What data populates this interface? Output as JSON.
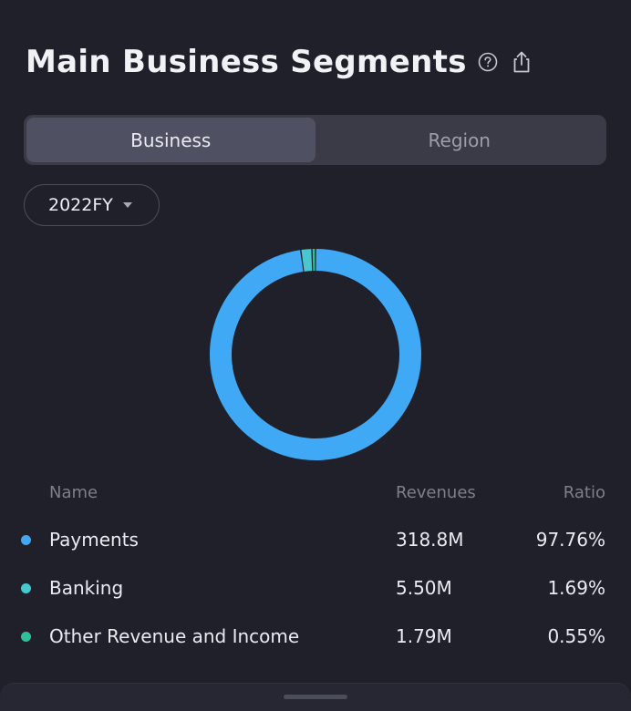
{
  "header": {
    "title": "Main Business Segments",
    "help_icon": "question-circle-icon",
    "share_icon": "share-icon"
  },
  "tabs": [
    {
      "label": "Business",
      "active": true
    },
    {
      "label": "Region",
      "active": false
    }
  ],
  "period_selector": {
    "value": "2022FY",
    "icon": "caret-down-icon"
  },
  "chart_data": {
    "type": "pie",
    "donut": true,
    "categories": [
      "Payments",
      "Banking",
      "Other Revenue and Income"
    ],
    "values": [
      97.76,
      1.69,
      0.55
    ],
    "colors": [
      "#3fa9f5",
      "#48c7cf",
      "#2dc197"
    ]
  },
  "table": {
    "columns": {
      "name": "Name",
      "revenues": "Revenues",
      "ratio": "Ratio"
    },
    "rows": [
      {
        "name": "Payments",
        "revenues": "318.8M",
        "ratio": "97.76%",
        "color": "#3fa9f5"
      },
      {
        "name": "Banking",
        "revenues": "5.50M",
        "ratio": "1.69%",
        "color": "#48c7cf"
      },
      {
        "name": "Other Revenue and Income",
        "revenues": "1.79M",
        "ratio": "0.55%",
        "color": "#2dc197"
      }
    ]
  },
  "colors": {
    "background": "#1f2029",
    "accent": "#3fa9f5"
  }
}
